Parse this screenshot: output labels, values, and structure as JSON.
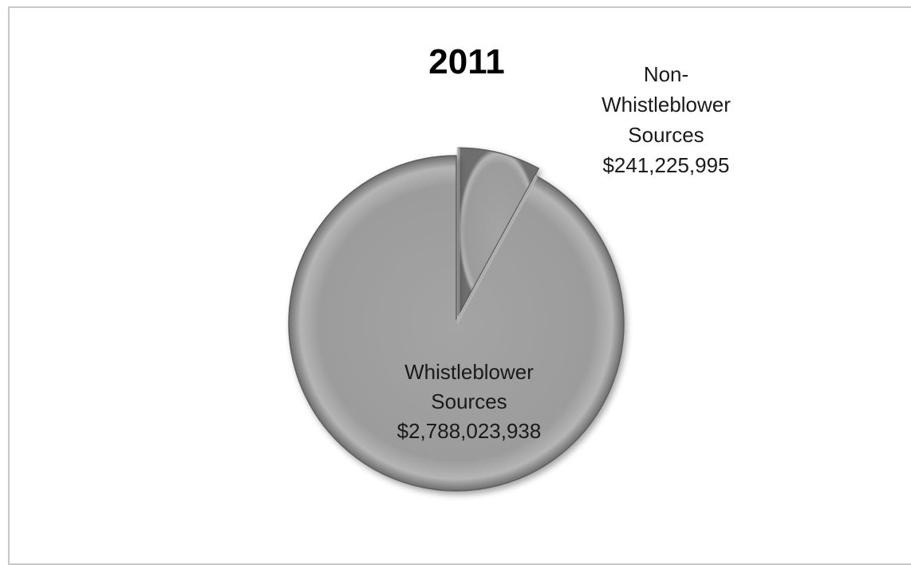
{
  "chart_data": {
    "type": "pie",
    "title": "2011",
    "categories": [
      "Non-Whistleblower Sources",
      "Whistleblower Sources"
    ],
    "values": [
      241225995,
      2788023938
    ],
    "value_labels": [
      "$241,225,995",
      "$2,788,023,938"
    ],
    "label_lines": [
      [
        "Non-",
        "Whistleblower",
        "Sources",
        "$241,225,995"
      ],
      [
        "Whistleblower",
        "Sources",
        "$2,788,023,938"
      ]
    ],
    "exploded": [
      "Non-Whistleblower Sources"
    ],
    "legend": "none",
    "colors": {
      "slice_fill": "#9a9a9a",
      "slice_highlight": "#c4c4c4",
      "slice_shadow": "#5e5e5e",
      "frame_border": "#c8c8c8"
    }
  }
}
